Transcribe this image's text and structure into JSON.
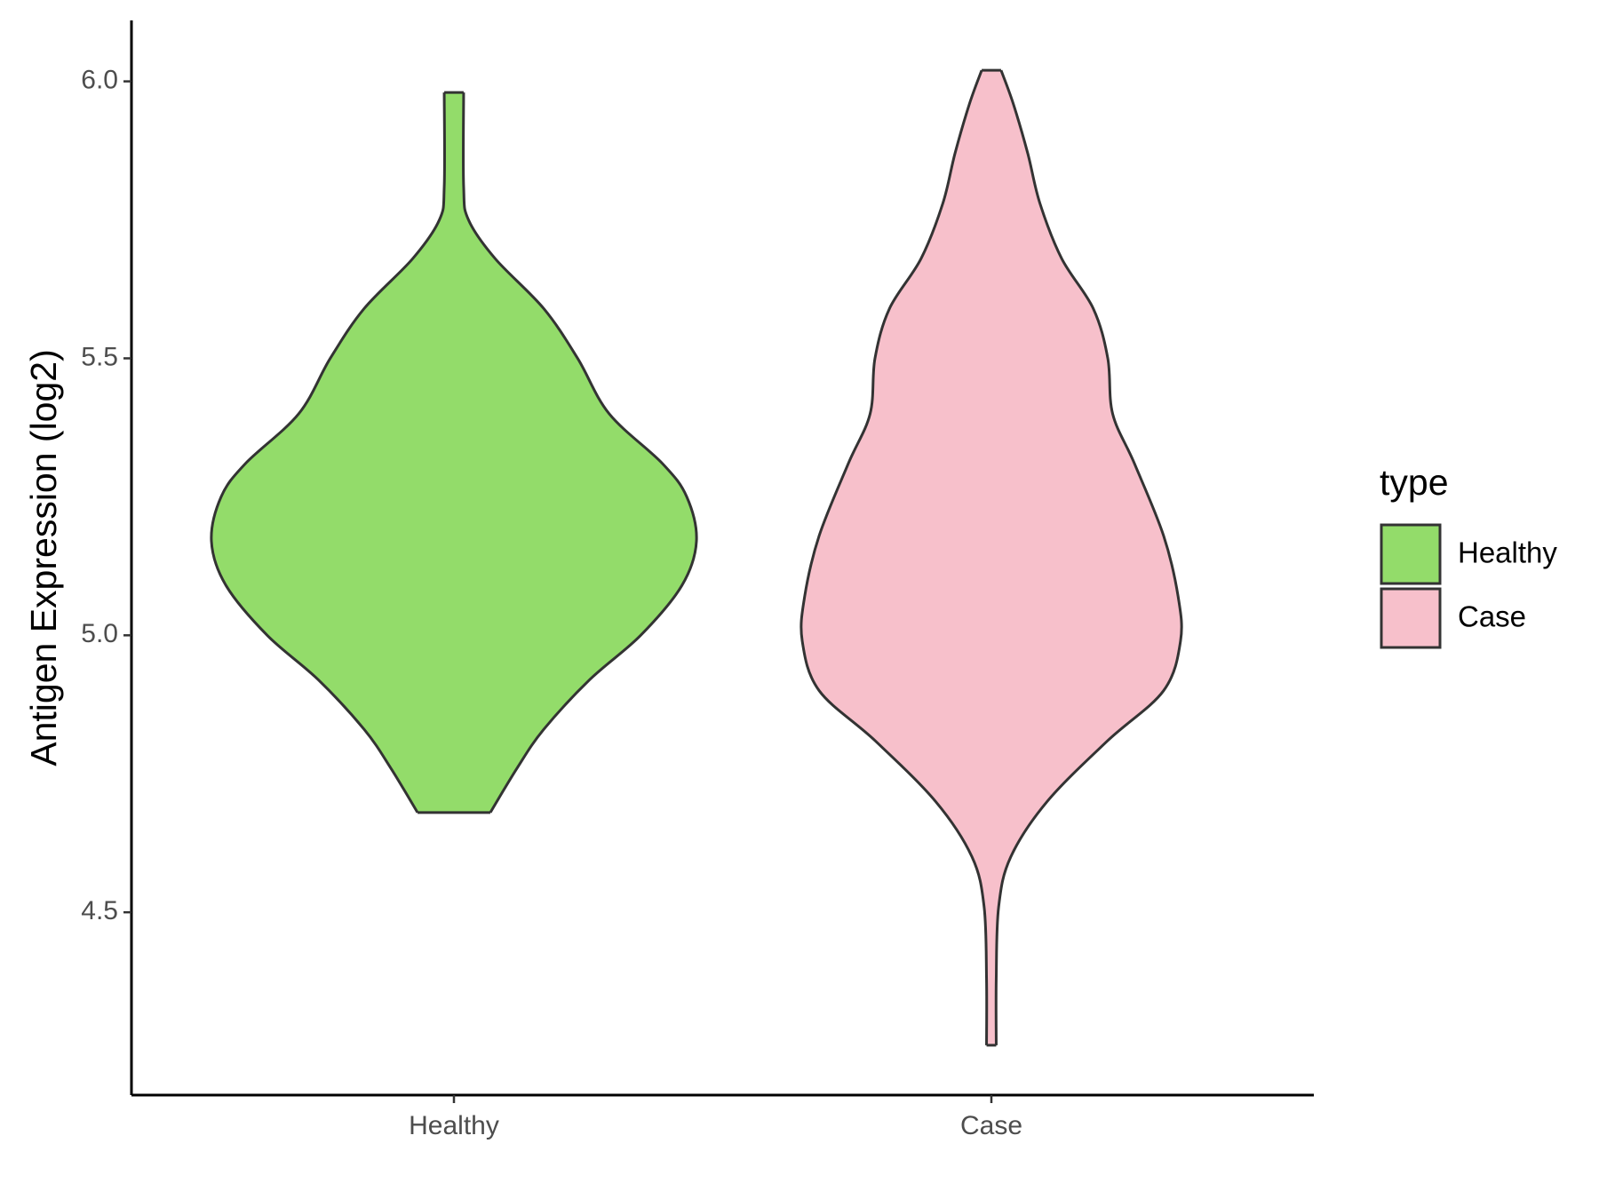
{
  "chart_data": {
    "type": "violin",
    "y_label": "Antigen Expression (log2)",
    "legend_title": "type",
    "ylim": [
      4.17,
      6.11
    ],
    "yticks": [
      4.5,
      {
        "value": 5,
        "label": "5.0"
      },
      {
        "value": 5.5,
        "label": "5.5"
      },
      {
        "value": 6,
        "label": "6.0"
      }
    ],
    "categories": [
      "Healthy",
      "Case"
    ],
    "series": [
      {
        "name": "Healthy",
        "color": "#93dc6a",
        "y": [
          5.98,
          5.81,
          5.75,
          5.68,
          5.59,
          5.5,
          5.4,
          5.31,
          5.25,
          5.17,
          5.09,
          5.0,
          4.92,
          4.83,
          4.76,
          4.68
        ],
        "density": [
          0.04,
          0.04,
          0.06,
          0.17,
          0.37,
          0.51,
          0.64,
          0.86,
          0.96,
          1,
          0.94,
          0.77,
          0.56,
          0.37,
          0.26,
          0.15
        ]
      },
      {
        "name": "Case",
        "color": "#f7c0cb",
        "y": [
          6.02,
          5.96,
          5.87,
          5.78,
          5.68,
          5.59,
          5.5,
          5.4,
          5.31,
          5.18,
          5.07,
          4.99,
          4.9,
          4.81,
          4.7,
          4.6,
          4.51,
          4.38,
          4.26
        ],
        "density": [
          0.04,
          0.09,
          0.15,
          0.2,
          0.29,
          0.42,
          0.48,
          0.5,
          0.59,
          0.71,
          0.77,
          0.78,
          0.71,
          0.48,
          0.23,
          0.08,
          0.03,
          0.02,
          0.02
        ]
      }
    ]
  }
}
